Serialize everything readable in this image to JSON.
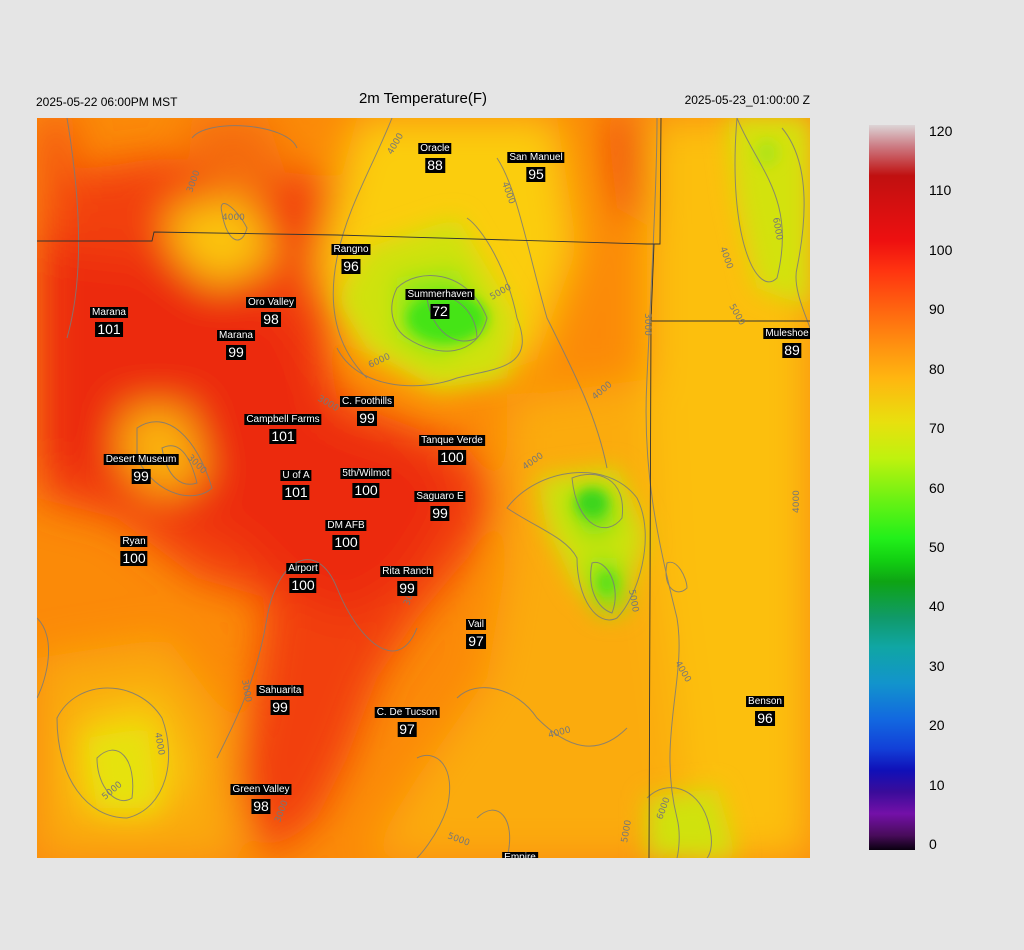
{
  "header": {
    "valid_local": "2025-05-22 06:00PM MST",
    "title": "2m Temperature(F)",
    "valid_utc": "2025-05-23_01:00:00 Z"
  },
  "colorbar": {
    "ticks": [
      "120",
      "110",
      "100",
      "90",
      "80",
      "70",
      "60",
      "50",
      "40",
      "30",
      "20",
      "10",
      "0"
    ]
  },
  "contour_labels": [
    "3000",
    "4000",
    "5000",
    "6000"
  ],
  "stations": [
    {
      "name": "Oracle",
      "value": "88"
    },
    {
      "name": "San Manuel",
      "value": "95"
    },
    {
      "name": "Rangno",
      "value": "96"
    },
    {
      "name": "Summerhaven",
      "value": "72"
    },
    {
      "name": "Marana",
      "value": "101"
    },
    {
      "name": "Oro Valley",
      "value": "98"
    },
    {
      "name": "Marana",
      "value": "99"
    },
    {
      "name": "Muleshoe R",
      "value": "89"
    },
    {
      "name": "C. Foothills",
      "value": "99"
    },
    {
      "name": "Campbell Farms",
      "value": "101"
    },
    {
      "name": "Tanque Verde",
      "value": "100"
    },
    {
      "name": "Desert Museum",
      "value": "99"
    },
    {
      "name": "U of A",
      "value": "101"
    },
    {
      "name": "5th/Wilmot",
      "value": "100"
    },
    {
      "name": "Saguaro E",
      "value": "99"
    },
    {
      "name": "DM AFB",
      "value": "100"
    },
    {
      "name": "Ryan",
      "value": "100"
    },
    {
      "name": "Airport",
      "value": "100"
    },
    {
      "name": "Rita Ranch",
      "value": "99"
    },
    {
      "name": "Vail",
      "value": "97"
    },
    {
      "name": "Sahuarita",
      "value": "99"
    },
    {
      "name": "C. De Tucson",
      "value": "97"
    },
    {
      "name": "Benson",
      "value": "96"
    },
    {
      "name": "Green Valley",
      "value": "98"
    },
    {
      "name": "Empire",
      "value": ""
    }
  ]
}
